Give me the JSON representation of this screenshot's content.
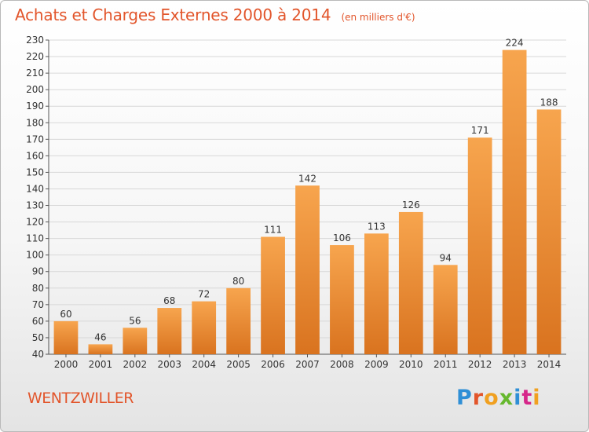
{
  "header": {
    "title": "Achats et Charges Externes 2000 à 2014",
    "unit": "(en milliers d'€)"
  },
  "footer": {
    "location": "WENTZWILLER",
    "logo_text": "Proxiti"
  },
  "colors": {
    "title": "#e2552b",
    "bar_light": "#f7a54e",
    "bar_dark": "#d9731f",
    "grid": "#d8d8d8",
    "logo_letters": [
      "#2f8fd6",
      "#e2552b",
      "#f0a020",
      "#66b82e",
      "#2f8fd6",
      "#d6278a",
      "#f0a020"
    ]
  },
  "chart_data": {
    "type": "bar",
    "title": "Achats et Charges Externes 2000 à 2014",
    "subtitle": "(en milliers d'€)",
    "categories": [
      "2000",
      "2001",
      "2002",
      "2003",
      "2004",
      "2005",
      "2006",
      "2007",
      "2008",
      "2009",
      "2010",
      "2011",
      "2012",
      "2013",
      "2014"
    ],
    "values": [
      60,
      46,
      56,
      68,
      72,
      80,
      111,
      142,
      106,
      113,
      126,
      94,
      171,
      224,
      188
    ],
    "ylim": [
      40,
      230
    ],
    "yticks": [
      40,
      50,
      60,
      70,
      80,
      90,
      100,
      110,
      120,
      130,
      140,
      150,
      160,
      170,
      180,
      190,
      200,
      210,
      220,
      230
    ],
    "grid": true,
    "xlabel": "",
    "ylabel": ""
  }
}
